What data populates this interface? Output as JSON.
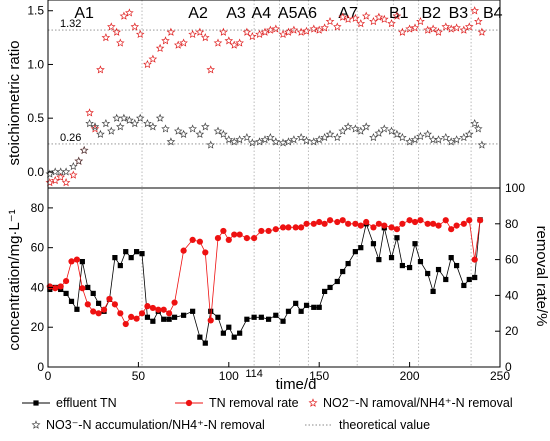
{
  "chart_data": {
    "type": "scatter",
    "phases": [
      {
        "label": "A1",
        "x": 20
      },
      {
        "label": "A2",
        "x": 83
      },
      {
        "label": "A3",
        "x": 104
      },
      {
        "label": "A4",
        "x": 118
      },
      {
        "label": "A5A6",
        "x": 138
      },
      {
        "label": "A7",
        "x": 166
      },
      {
        "label": "B1",
        "x": 194
      },
      {
        "label": "B2",
        "x": 212
      },
      {
        "label": "B3",
        "x": 227
      },
      {
        "label": "B4",
        "x": 246
      }
    ],
    "phase_boundaries": [
      52,
      114,
      128,
      144,
      171,
      191,
      205,
      234
    ],
    "x_axis": {
      "label": "time/d",
      "min": 0,
      "max": 250,
      "ticks": [
        "0",
        "50",
        "100",
        "150",
        "200",
        "250"
      ],
      "extra_tick": "114"
    },
    "top_panel": {
      "ylabel": "stoichiometric ratio",
      "ylim": [
        -0.15,
        1.6
      ],
      "ticks": [
        "0.0",
        "0.5",
        "1.0",
        "1.5"
      ],
      "reference_lines": [
        {
          "value": 1.32,
          "label": "1.32"
        },
        {
          "value": 0.26,
          "label": "0.26"
        }
      ],
      "series": [
        {
          "name": "NO2⁻-N ramoval/NH4⁺-N removal",
          "color": "#e02020",
          "x": [
            1,
            4,
            7,
            10,
            14,
            17,
            20,
            23,
            26,
            29,
            32,
            35,
            38,
            40,
            42,
            45,
            48,
            51,
            55,
            58,
            62,
            65,
            68,
            72,
            75,
            80,
            84,
            87,
            90,
            94,
            97,
            100,
            103,
            106,
            110,
            113,
            117,
            120,
            123,
            126,
            130,
            133,
            136,
            140,
            143,
            147,
            150,
            153,
            156,
            160,
            163,
            166,
            170,
            173,
            176,
            180,
            183,
            186,
            190,
            193,
            196,
            200,
            203,
            206,
            210,
            213,
            216,
            220,
            223,
            226,
            230,
            233,
            236,
            238,
            240
          ],
          "y": [
            -0.1,
            -0.08,
            -0.05,
            -0.1,
            -0.03,
            0.1,
            0.2,
            0.55,
            0.4,
            0.95,
            1.25,
            1.35,
            1.3,
            1.2,
            1.45,
            1.48,
            1.35,
            1.28,
            1.0,
            1.05,
            1.15,
            1.22,
            1.3,
            1.18,
            1.2,
            1.28,
            1.3,
            1.25,
            0.95,
            1.2,
            1.3,
            1.22,
            1.18,
            1.2,
            1.3,
            1.26,
            1.28,
            1.3,
            1.32,
            1.33,
            1.28,
            1.3,
            1.32,
            1.3,
            1.31,
            1.33,
            1.32,
            1.34,
            1.4,
            1.35,
            1.44,
            1.42,
            1.43,
            1.38,
            1.45,
            1.4,
            1.44,
            1.42,
            1.38,
            1.45,
            1.3,
            1.33,
            1.34,
            1.4,
            1.32,
            1.33,
            1.3,
            1.35,
            1.33,
            1.34,
            1.32,
            1.35,
            1.5,
            1.4,
            1.3
          ]
        },
        {
          "name": "NO3⁻-N accumulation/NH4⁺-N removal",
          "color": "#444444",
          "x": [
            1,
            4,
            7,
            10,
            14,
            17,
            20,
            23,
            26,
            29,
            32,
            35,
            38,
            40,
            42,
            45,
            48,
            51,
            55,
            58,
            62,
            65,
            68,
            72,
            75,
            80,
            84,
            87,
            90,
            94,
            97,
            100,
            103,
            106,
            110,
            113,
            117,
            120,
            123,
            126,
            130,
            133,
            136,
            140,
            143,
            147,
            150,
            153,
            156,
            160,
            163,
            166,
            170,
            173,
            176,
            180,
            183,
            186,
            190,
            193,
            196,
            200,
            203,
            206,
            210,
            213,
            216,
            220,
            223,
            226,
            230,
            233,
            236,
            238,
            240
          ],
          "y": [
            -0.02,
            0.0,
            0.0,
            0.0,
            0.05,
            0.1,
            0.2,
            0.45,
            0.42,
            0.35,
            0.45,
            0.38,
            0.5,
            0.42,
            0.5,
            0.48,
            0.45,
            0.5,
            0.45,
            0.42,
            0.5,
            0.4,
            0.28,
            0.38,
            0.35,
            0.4,
            0.35,
            0.42,
            0.25,
            0.38,
            0.35,
            0.3,
            0.28,
            0.3,
            0.32,
            0.27,
            0.28,
            0.3,
            0.32,
            0.28,
            0.27,
            0.28,
            0.3,
            0.32,
            0.29,
            0.28,
            0.3,
            0.32,
            0.35,
            0.32,
            0.38,
            0.42,
            0.4,
            0.38,
            0.42,
            0.32,
            0.36,
            0.4,
            0.38,
            0.35,
            0.32,
            0.28,
            0.3,
            0.33,
            0.35,
            0.3,
            0.3,
            0.32,
            0.28,
            0.3,
            0.32,
            0.35,
            0.45,
            0.4,
            0.25
          ]
        }
      ]
    },
    "bottom_panel": {
      "ylabel_left": "concentration/mg·L⁻¹",
      "ylabel_right": "removal rate/%",
      "ylim_left": [
        0,
        90
      ],
      "ylim_right": [
        0,
        100
      ],
      "left_ticks": [
        "0",
        "20",
        "40",
        "60",
        "80"
      ],
      "right_ticks": [
        "0",
        "20",
        "40",
        "60",
        "80",
        "100"
      ],
      "series": [
        {
          "name": "effluent TN",
          "axis": "left",
          "color": "#000000",
          "marker": "square",
          "x": [
            1,
            4,
            7,
            10,
            13,
            16,
            19,
            22,
            25,
            28,
            31,
            34,
            37,
            40,
            43,
            46,
            49,
            52,
            55,
            58,
            61,
            64,
            67,
            70,
            75,
            80,
            84,
            87,
            90,
            94,
            97,
            100,
            103,
            106,
            110,
            114,
            118,
            122,
            126,
            130,
            133,
            137,
            140,
            143,
            147,
            150,
            153,
            156,
            160,
            163,
            166,
            170,
            173,
            176,
            180,
            183,
            186,
            190,
            193,
            196,
            200,
            203,
            206,
            210,
            213,
            216,
            220,
            223,
            226,
            230,
            233,
            236,
            239
          ],
          "y": [
            39,
            40,
            39,
            37,
            33,
            29,
            53,
            40,
            37,
            32,
            28,
            34,
            55,
            51,
            58,
            55,
            58,
            57,
            25,
            23,
            28,
            24,
            24,
            25,
            26,
            28,
            15,
            12,
            28,
            25,
            17,
            20,
            15,
            17,
            24,
            25,
            25,
            24,
            26,
            23,
            28,
            32,
            28,
            31,
            30,
            30,
            38,
            40,
            43,
            48,
            52,
            58,
            60,
            72,
            62,
            54,
            70,
            55,
            65,
            51,
            50,
            62,
            53,
            47,
            38,
            49,
            44,
            55,
            51,
            41,
            44,
            45,
            74
          ]
        },
        {
          "name": "TN removal rate",
          "axis": "right",
          "color": "#ee1111",
          "marker": "circle",
          "x": [
            1,
            4,
            7,
            10,
            13,
            16,
            19,
            22,
            25,
            28,
            31,
            34,
            37,
            40,
            43,
            46,
            49,
            52,
            55,
            58,
            61,
            64,
            67,
            70,
            75,
            80,
            84,
            87,
            90,
            94,
            97,
            100,
            103,
            106,
            110,
            114,
            118,
            122,
            126,
            130,
            133,
            137,
            140,
            143,
            147,
            150,
            153,
            156,
            160,
            163,
            166,
            170,
            173,
            176,
            180,
            183,
            186,
            190,
            193,
            196,
            200,
            203,
            206,
            210,
            213,
            216,
            220,
            223,
            226,
            230,
            233,
            236,
            239
          ],
          "y": [
            45,
            44,
            45,
            48,
            59,
            60,
            44,
            35,
            31,
            30,
            32,
            38,
            35,
            30,
            24,
            28,
            27,
            30,
            34,
            33,
            32,
            32,
            30,
            36,
            65,
            71,
            70,
            64,
            26,
            72,
            76,
            71,
            74,
            74,
            72,
            72,
            76,
            76,
            77,
            78,
            78,
            78,
            78,
            80,
            80,
            81,
            80,
            82,
            81,
            82,
            80,
            80,
            79,
            81,
            78,
            80,
            79,
            78,
            77,
            80,
            82,
            81,
            82,
            80,
            80,
            79,
            82,
            77,
            79,
            80,
            82,
            60,
            82
          ]
        }
      ]
    },
    "legend": [
      {
        "label": "effluent TN",
        "color": "#000000",
        "marker": "square"
      },
      {
        "label": "TN removal rate",
        "color": "#ee1111",
        "marker": "circle"
      },
      {
        "label": "NO2⁻-N ramoval/NH4⁺-N removal",
        "color": "#e02020",
        "marker": "star"
      },
      {
        "label": "NO3⁻-N accumulation/NH4⁺-N removal",
        "color": "#444444",
        "marker": "star"
      },
      {
        "label": "theoretical value",
        "color": "#888888",
        "marker": "dotted-line"
      }
    ]
  }
}
